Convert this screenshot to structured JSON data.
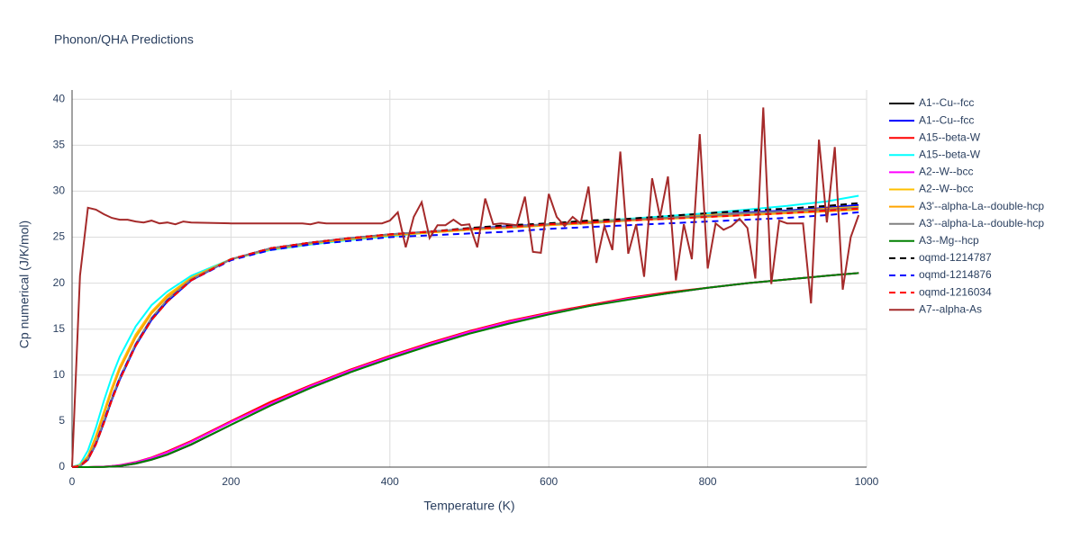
{
  "chart_data": {
    "type": "line",
    "title": "Phonon/QHA Predictions",
    "x_label": "Temperature (K)",
    "y_label": "Cp numerical (J/K/mol)",
    "xlim": [
      0,
      1000
    ],
    "ylim": [
      0,
      41
    ],
    "xticks": [
      0,
      200,
      400,
      600,
      800,
      1000
    ],
    "yticks": [
      0,
      5,
      10,
      15,
      20,
      25,
      30,
      35,
      40
    ],
    "grid": true,
    "legend": "right",
    "x": [
      0,
      10,
      20,
      30,
      40,
      50,
      60,
      80,
      100,
      120,
      150,
      200,
      250,
      300,
      350,
      400,
      450,
      500,
      550,
      600,
      650,
      700,
      750,
      800,
      850,
      900,
      950,
      990
    ],
    "series": [
      {
        "name": "A1--Cu--fcc",
        "color": "#000000",
        "dash": false,
        "values": [
          0,
          0,
          0,
          0.01,
          0.02,
          0.06,
          0.12,
          0.38,
          0.8,
          1.35,
          2.45,
          4.6,
          6.7,
          8.6,
          10.3,
          11.9,
          13.3,
          14.6,
          15.7,
          16.7,
          17.5,
          18.3,
          18.9,
          19.5,
          20,
          20.4,
          20.8,
          21.1
        ]
      },
      {
        "name": "A1--Cu--fcc",
        "color": "#0000ff",
        "dash": false,
        "values": [
          0,
          0.1,
          0.8,
          2.5,
          4.8,
          7.3,
          9.5,
          13.2,
          16,
          18,
          20.3,
          22.6,
          23.8,
          24.4,
          24.9,
          25.3,
          25.6,
          25.9,
          26.2,
          26.4,
          26.7,
          26.9,
          27.2,
          27.4,
          27.7,
          27.9,
          28.2,
          28.5
        ]
      },
      {
        "name": "A15--beta-W",
        "color": "#ff0000",
        "dash": false,
        "values": [
          0,
          0,
          0,
          0.02,
          0.05,
          0.12,
          0.22,
          0.55,
          1.05,
          1.7,
          2.85,
          5.0,
          7.1,
          8.9,
          10.6,
          12.1,
          13.5,
          14.8,
          15.9,
          16.8,
          17.6,
          18.4,
          19.0,
          19.5,
          20,
          20.4,
          20.8,
          21.1
        ]
      },
      {
        "name": "A15--beta-W",
        "color": "#00ffff",
        "dash": false,
        "values": [
          0,
          0.3,
          1.8,
          4.3,
          7.2,
          9.8,
          12,
          15.3,
          17.6,
          19.1,
          20.8,
          22.6,
          23.6,
          24.2,
          24.7,
          25.1,
          25.5,
          25.8,
          26.1,
          26.4,
          26.7,
          27,
          27.3,
          27.6,
          28,
          28.4,
          28.9,
          29.5
        ]
      },
      {
        "name": "A2--W--bcc",
        "color": "#ff00ff",
        "dash": false,
        "values": [
          0,
          0,
          0,
          0.02,
          0.05,
          0.11,
          0.2,
          0.52,
          1.0,
          1.6,
          2.75,
          4.9,
          6.9,
          8.8,
          10.5,
          12.0,
          13.4,
          14.7,
          15.8,
          16.7,
          17.5,
          18.3,
          18.9,
          19.5,
          20,
          20.4,
          20.8,
          21.1
        ]
      },
      {
        "name": "A2--W--bcc",
        "color": "#ffc000",
        "dash": false,
        "values": [
          0,
          0.2,
          1.2,
          3.4,
          6,
          8.6,
          10.9,
          14.4,
          16.9,
          18.7,
          20.6,
          22.6,
          23.7,
          24.3,
          24.8,
          25.2,
          25.5,
          25.8,
          26.1,
          26.4,
          26.7,
          26.9,
          27.1,
          27.4,
          27.6,
          27.8,
          28.1,
          28.3
        ]
      },
      {
        "name": "A3'--alpha-La--double-hcp",
        "color": "#ffa500",
        "dash": false,
        "values": [
          0,
          0.2,
          1.1,
          3.2,
          5.7,
          8.3,
          10.6,
          14.1,
          16.7,
          18.5,
          20.5,
          22.6,
          23.7,
          24.3,
          24.8,
          25.2,
          25.5,
          25.8,
          26.0,
          26.3,
          26.5,
          26.8,
          27.0,
          27.2,
          27.4,
          27.6,
          27.8,
          28.0
        ]
      },
      {
        "name": "A3'--alpha-La--double-hcp",
        "color": "#808080",
        "dash": false,
        "values": [
          0,
          0.1,
          0.9,
          2.6,
          5,
          7.5,
          9.7,
          13.4,
          16.2,
          18.2,
          20.4,
          22.6,
          23.8,
          24.4,
          24.9,
          25.3,
          25.6,
          25.9,
          26.1,
          26.4,
          26.6,
          26.9,
          27.1,
          27.3,
          27.6,
          27.8,
          28.0,
          28.2
        ]
      },
      {
        "name": "A3--Mg--hcp",
        "color": "#008000",
        "dash": false,
        "values": [
          0,
          0,
          0,
          0.01,
          0.02,
          0.06,
          0.13,
          0.4,
          0.82,
          1.38,
          2.5,
          4.6,
          6.7,
          8.6,
          10.3,
          11.8,
          13.2,
          14.5,
          15.6,
          16.6,
          17.5,
          18.2,
          18.9,
          19.5,
          20,
          20.4,
          20.8,
          21.1
        ]
      },
      {
        "name": "oqmd-1214787",
        "color": "#000000",
        "dash": true,
        "values": [
          0,
          0.1,
          0.8,
          2.5,
          4.8,
          7.3,
          9.5,
          13.2,
          16,
          18,
          20.3,
          22.6,
          23.8,
          24.4,
          24.9,
          25.3,
          25.6,
          26.0,
          26.3,
          26.5,
          26.8,
          27.0,
          27.3,
          27.6,
          27.9,
          28.1,
          28.4,
          28.7
        ]
      },
      {
        "name": "oqmd-1214876",
        "color": "#0000ff",
        "dash": true,
        "values": [
          0,
          0.1,
          0.9,
          2.6,
          5,
          7.5,
          9.7,
          13.3,
          16.1,
          18.1,
          20.3,
          22.5,
          23.6,
          24.2,
          24.6,
          25.0,
          25.2,
          25.4,
          25.6,
          25.9,
          26.1,
          26.3,
          26.5,
          26.7,
          26.9,
          27.1,
          27.4,
          27.7
        ]
      },
      {
        "name": "oqmd-1216034",
        "color": "#ff0000",
        "dash": true,
        "values": [
          0,
          0.1,
          0.8,
          2.5,
          4.8,
          7.3,
          9.5,
          13.2,
          16,
          18,
          20.3,
          22.6,
          23.8,
          24.4,
          24.9,
          25.3,
          25.6,
          25.9,
          26.1,
          26.4,
          26.6,
          26.8,
          27.0,
          27.2,
          27.4,
          27.6,
          27.9,
          28.1
        ]
      },
      {
        "name": "A7--alpha-As",
        "color": "#a52a2a",
        "dash": false,
        "x": [
          0,
          10,
          20,
          30,
          40,
          50,
          60,
          70,
          80,
          90,
          100,
          110,
          120,
          130,
          140,
          150,
          200,
          250,
          290,
          300,
          310,
          320,
          390,
          400,
          410,
          420,
          430,
          440,
          450,
          460,
          470,
          480,
          490,
          500,
          510,
          520,
          530,
          540,
          550,
          560,
          570,
          580,
          590,
          600,
          610,
          620,
          630,
          640,
          650,
          660,
          670,
          680,
          690,
          700,
          710,
          720,
          730,
          740,
          750,
          760,
          770,
          780,
          790,
          800,
          810,
          820,
          830,
          840,
          850,
          860,
          870,
          880,
          890,
          900,
          910,
          920,
          930,
          940,
          950,
          960,
          970,
          980,
          990
        ],
        "values": [
          0,
          20.8,
          28.2,
          28,
          27.5,
          27.1,
          26.9,
          26.9,
          26.7,
          26.6,
          26.8,
          26.5,
          26.6,
          26.4,
          26.7,
          26.6,
          26.5,
          26.5,
          26.5,
          26.4,
          26.6,
          26.5,
          26.5,
          26.8,
          27.7,
          23.9,
          27.2,
          28.8,
          24.9,
          26.3,
          26.3,
          26.9,
          26.3,
          26.4,
          23.9,
          29.2,
          26.4,
          26.5,
          26.4,
          26.3,
          29.4,
          23.4,
          23.3,
          29.7,
          27.2,
          26.2,
          27.2,
          26.5,
          30.5,
          22.2,
          26.2,
          23.6,
          34.3,
          23.2,
          26.4,
          20.7,
          31.4,
          27.2,
          31.6,
          20.3,
          26.4,
          22.6,
          36.2,
          21.6,
          26.5,
          25.8,
          26.2,
          27,
          26,
          20.5,
          39.1,
          19.9,
          26.8,
          26.5,
          26.5,
          26.5,
          17.8,
          35.6,
          26.6,
          34.8,
          19.3,
          25,
          27.4
        ]
      }
    ]
  }
}
